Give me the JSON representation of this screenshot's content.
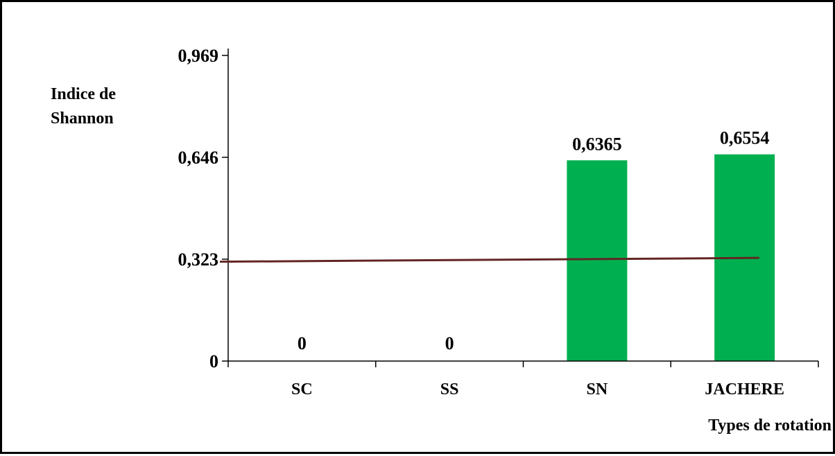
{
  "chart_data": {
    "type": "bar",
    "categories": [
      "SC",
      "SS",
      "SN",
      "JACHERE"
    ],
    "values": [
      0,
      0,
      0.6365,
      0.6554
    ],
    "data_labels": [
      "0",
      "0",
      "0,6365",
      "0,6554"
    ],
    "ylabel_line1": "Indice de",
    "ylabel_line2": "Shannon",
    "xlabel": "Types de rotation",
    "ylim": [
      0,
      0.969
    ],
    "yticks": [
      0,
      0.323,
      0.646,
      0.969
    ],
    "ytick_labels": [
      "0",
      "0,323",
      "0,646",
      "0,969"
    ],
    "trend_line": {
      "start": 0.315,
      "end": 0.327
    },
    "grid": false,
    "legend": "none",
    "colors": {
      "bar": "#00B050",
      "trend": "#632523",
      "axis": "#000000",
      "border": "#000000"
    }
  }
}
